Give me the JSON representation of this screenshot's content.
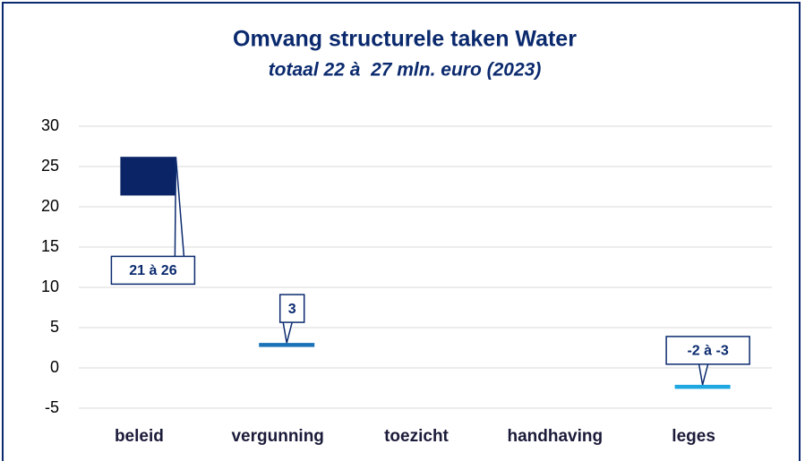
{
  "chart_data": {
    "type": "floating_bar",
    "title": "Omvang structurele taken Water",
    "subtitle": "totaal 22 à  27 mln. euro (2023)",
    "categories": [
      "beleid",
      "vergunning",
      "toezicht",
      "handhaving",
      "leges"
    ],
    "values": [
      [
        21.4,
        26.2
      ],
      [
        2.6,
        3.1
      ],
      null,
      null,
      [
        -2.6,
        -2.1
      ]
    ],
    "value_labels": [
      "21 à 26",
      "3",
      null,
      null,
      "-2 à -3"
    ],
    "colors": [
      "#0b2466",
      "#1a73b8",
      null,
      null,
      "#1ea7e1"
    ],
    "ylim": [
      -5,
      30
    ],
    "yticks": [
      -5,
      0,
      5,
      10,
      15,
      20,
      25,
      30
    ],
    "grid": true
  }
}
